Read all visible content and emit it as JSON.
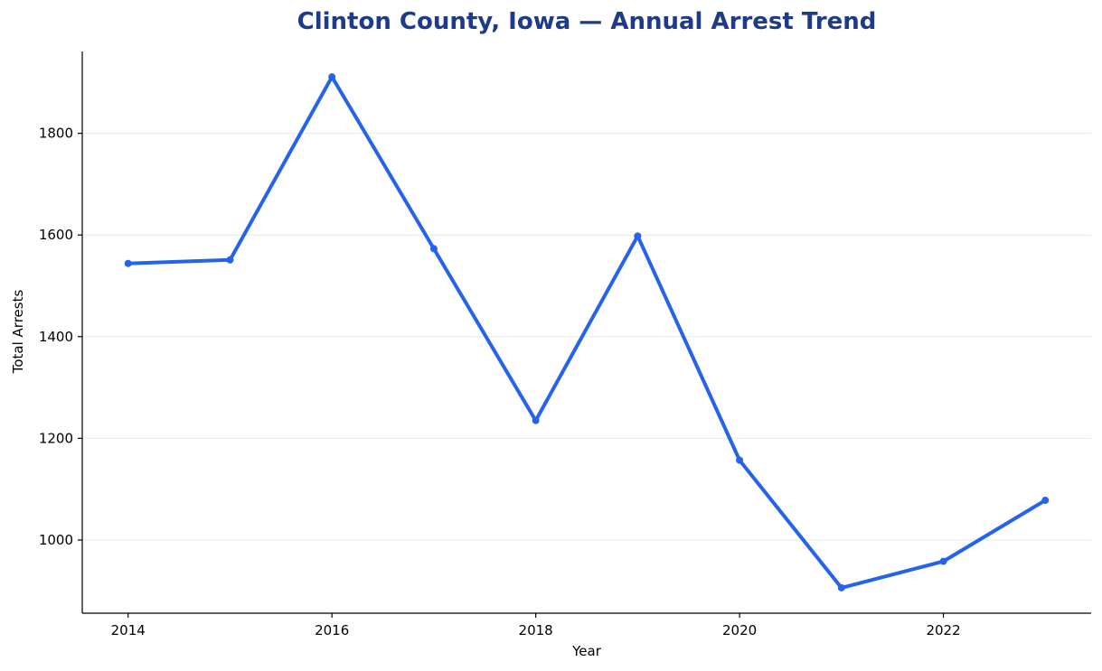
{
  "chart_data": {
    "type": "line",
    "title": "Clinton County, Iowa — Annual Arrest Trend",
    "xlabel": "Year",
    "ylabel": "Total Arrests",
    "x": [
      2014,
      2015,
      2016,
      2017,
      2018,
      2019,
      2020,
      2021,
      2022,
      2023
    ],
    "series": [
      {
        "values": [
          1544,
          1551,
          1911,
          1573,
          1235,
          1598,
          1157,
          906,
          958,
          1078
        ]
      }
    ],
    "xticks": [
      2014,
      2016,
      2018,
      2020,
      2022
    ],
    "xtick_labels": [
      "2014",
      "2016",
      "2018",
      "2020",
      "2022"
    ],
    "yticks": [
      1000,
      1200,
      1400,
      1600,
      1800
    ],
    "ytick_labels": [
      "1000",
      "1200",
      "1400",
      "1600",
      "1800"
    ],
    "xlim": [
      2013.55,
      2023.45
    ],
    "ylim": [
      856,
      1961
    ],
    "grid": "horizontal",
    "legend": "none",
    "colors": {
      "line": "#2563eb",
      "title": "#1e3a8a",
      "grid": "#e8e8e8",
      "axis": "#000000"
    }
  }
}
